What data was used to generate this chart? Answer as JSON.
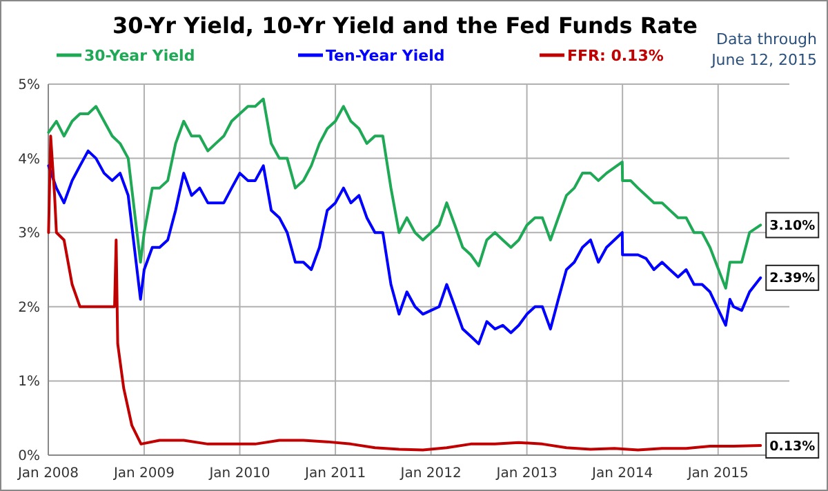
{
  "chart_data": {
    "type": "line",
    "title": "30-Yr Yield, 10-Yr Yield and the Fed Funds Rate",
    "annotations": [
      "Data through\nJune 12, 2015",
      {
        "text": "3.10%",
        "x": "2015-06-12",
        "y": 3.1
      },
      {
        "text": "2.39%",
        "x": "2015-06-12",
        "y": 2.39
      },
      {
        "text": "0.13%",
        "x": "2015-06-12",
        "y": 0.13
      }
    ],
    "series": [
      {
        "name": "30-Year Yield",
        "color": "#1fa855",
        "x": [
          "2008-01-02",
          "2008-02-01",
          "2008-03-01",
          "2008-04-01",
          "2008-05-01",
          "2008-06-01",
          "2008-07-01",
          "2008-08-01",
          "2008-09-01",
          "2008-10-01",
          "2008-11-01",
          "2008-12-18",
          "2009-01-01",
          "2009-02-01",
          "2009-03-01",
          "2009-04-01",
          "2009-05-01",
          "2009-06-01",
          "2009-07-01",
          "2009-08-01",
          "2009-09-01",
          "2009-10-01",
          "2009-11-01",
          "2009-12-01",
          "2010-01-01",
          "2010-02-01",
          "2010-03-01",
          "2010-04-01",
          "2010-05-01",
          "2010-06-01",
          "2010-07-01",
          "2010-08-01",
          "2010-09-01",
          "2010-10-01",
          "2010-11-01",
          "2010-12-01",
          "2011-01-01",
          "2011-02-01",
          "2011-03-01",
          "2011-04-01",
          "2011-05-01",
          "2011-06-01",
          "2011-07-01",
          "2011-08-01",
          "2011-09-01",
          "2011-10-01",
          "2011-11-01",
          "2011-12-01",
          "2012-01-01",
          "2012-02-01",
          "2012-03-01",
          "2012-04-01",
          "2012-05-01",
          "2012-06-01",
          "2012-07-01",
          "2012-08-01",
          "2012-09-01",
          "2012-10-01",
          "2012-11-01",
          "2012-12-01",
          "2013-01-01",
          "2013-02-01",
          "2013-03-01",
          "2013-04-01",
          "2013-05-01",
          "2013-06-01",
          "2013-07-01",
          "2013-08-01",
          "2013-09-01",
          "2013-10-01",
          "2013-11-01",
          "2013-12-31",
          "2014-01-01",
          "2014-02-01",
          "2014-03-01",
          "2014-04-01",
          "2014-05-01",
          "2014-06-01",
          "2014-07-01",
          "2014-08-01",
          "2014-09-01",
          "2014-10-01",
          "2014-11-01",
          "2014-12-01",
          "2015-01-30",
          "2015-02-15",
          "2015-03-01",
          "2015-04-01",
          "2015-05-01",
          "2015-06-12"
        ],
        "values": [
          4.35,
          4.5,
          4.3,
          4.5,
          4.6,
          4.6,
          4.7,
          4.5,
          4.3,
          4.2,
          4.0,
          2.6,
          3.0,
          3.6,
          3.6,
          3.7,
          4.2,
          4.5,
          4.3,
          4.3,
          4.1,
          4.2,
          4.3,
          4.5,
          4.6,
          4.7,
          4.7,
          4.8,
          4.2,
          4.0,
          4.0,
          3.6,
          3.7,
          3.9,
          4.2,
          4.4,
          4.5,
          4.7,
          4.5,
          4.4,
          4.2,
          4.3,
          4.3,
          3.6,
          3.0,
          3.2,
          3.0,
          2.9,
          3.0,
          3.1,
          3.4,
          3.1,
          2.8,
          2.7,
          2.55,
          2.9,
          3.0,
          2.9,
          2.8,
          2.9,
          3.1,
          3.2,
          3.2,
          2.9,
          3.2,
          3.5,
          3.6,
          3.8,
          3.8,
          3.7,
          3.8,
          3.95,
          3.7,
          3.7,
          3.6,
          3.5,
          3.4,
          3.4,
          3.3,
          3.2,
          3.2,
          3.0,
          3.0,
          2.8,
          2.25,
          2.6,
          2.6,
          2.6,
          3.0,
          3.1
        ]
      },
      {
        "name": "Ten-Year Yield",
        "color": "#0000ff",
        "x": [
          "2008-01-02",
          "2008-02-01",
          "2008-03-01",
          "2008-04-01",
          "2008-05-01",
          "2008-06-01",
          "2008-07-01",
          "2008-08-01",
          "2008-09-01",
          "2008-10-01",
          "2008-11-01",
          "2008-12-18",
          "2009-01-01",
          "2009-02-01",
          "2009-03-01",
          "2009-04-01",
          "2009-05-01",
          "2009-06-01",
          "2009-07-01",
          "2009-08-01",
          "2009-09-01",
          "2009-10-01",
          "2009-11-01",
          "2009-12-01",
          "2010-01-01",
          "2010-02-01",
          "2010-03-01",
          "2010-04-01",
          "2010-05-01",
          "2010-06-01",
          "2010-07-01",
          "2010-08-01",
          "2010-09-01",
          "2010-10-01",
          "2010-11-01",
          "2010-12-01",
          "2011-01-01",
          "2011-02-01",
          "2011-03-01",
          "2011-04-01",
          "2011-05-01",
          "2011-06-01",
          "2011-07-01",
          "2011-08-01",
          "2011-09-01",
          "2011-10-01",
          "2011-11-01",
          "2011-12-01",
          "2012-01-01",
          "2012-02-01",
          "2012-03-01",
          "2012-04-01",
          "2012-05-01",
          "2012-06-01",
          "2012-07-01",
          "2012-08-01",
          "2012-09-01",
          "2012-10-01",
          "2012-11-01",
          "2012-12-01",
          "2013-01-01",
          "2013-02-01",
          "2013-03-01",
          "2013-04-01",
          "2013-05-01",
          "2013-06-01",
          "2013-07-01",
          "2013-08-01",
          "2013-09-01",
          "2013-10-01",
          "2013-11-01",
          "2013-12-31",
          "2014-01-01",
          "2014-02-01",
          "2014-03-01",
          "2014-04-01",
          "2014-05-01",
          "2014-06-01",
          "2014-07-01",
          "2014-08-01",
          "2014-09-01",
          "2014-10-01",
          "2014-11-01",
          "2014-12-01",
          "2015-01-30",
          "2015-02-15",
          "2015-03-01",
          "2015-04-01",
          "2015-05-01",
          "2015-06-12"
        ],
        "values": [
          3.9,
          3.6,
          3.4,
          3.7,
          3.9,
          4.1,
          4.0,
          3.8,
          3.7,
          3.8,
          3.5,
          2.1,
          2.5,
          2.8,
          2.8,
          2.9,
          3.3,
          3.8,
          3.5,
          3.6,
          3.4,
          3.4,
          3.4,
          3.6,
          3.8,
          3.7,
          3.7,
          3.9,
          3.3,
          3.2,
          3.0,
          2.6,
          2.6,
          2.5,
          2.8,
          3.3,
          3.4,
          3.6,
          3.4,
          3.5,
          3.2,
          3.0,
          3.0,
          2.3,
          1.9,
          2.2,
          2.0,
          1.9,
          1.95,
          2.0,
          2.3,
          2.0,
          1.7,
          1.6,
          1.5,
          1.8,
          1.7,
          1.75,
          1.65,
          1.75,
          1.9,
          2.0,
          2.0,
          1.7,
          2.1,
          2.5,
          2.6,
          2.8,
          2.9,
          2.6,
          2.8,
          3.0,
          2.7,
          2.7,
          2.7,
          2.65,
          2.5,
          2.6,
          2.5,
          2.4,
          2.5,
          2.3,
          2.3,
          2.2,
          1.75,
          2.1,
          2.0,
          1.95,
          2.2,
          2.39
        ]
      },
      {
        "name": "FFR: 0.13%",
        "color": "#c00000",
        "x": [
          "2008-01-02",
          "2008-01-10",
          "2008-01-25",
          "2008-02-01",
          "2008-03-01",
          "2008-04-01",
          "2008-05-01",
          "2008-06-01",
          "2008-07-01",
          "2008-08-01",
          "2008-09-10",
          "2008-09-16",
          "2008-09-22",
          "2008-10-15",
          "2008-11-15",
          "2008-12-20",
          "2009-03-01",
          "2009-06-01",
          "2009-09-01",
          "2009-12-01",
          "2010-03-01",
          "2010-06-01",
          "2010-09-01",
          "2010-12-01",
          "2011-03-01",
          "2011-06-01",
          "2011-09-01",
          "2011-12-01",
          "2012-03-01",
          "2012-06-01",
          "2012-09-01",
          "2012-12-01",
          "2013-03-01",
          "2013-06-01",
          "2013-09-01",
          "2013-12-01",
          "2014-03-01",
          "2014-06-01",
          "2014-09-01",
          "2014-12-01",
          "2015-03-01",
          "2015-06-12"
        ],
        "values": [
          3.0,
          4.3,
          3.5,
          3.0,
          2.9,
          2.3,
          2.0,
          2.0,
          2.0,
          2.0,
          2.0,
          2.9,
          1.5,
          0.9,
          0.4,
          0.15,
          0.2,
          0.2,
          0.15,
          0.15,
          0.15,
          0.2,
          0.2,
          0.18,
          0.15,
          0.1,
          0.08,
          0.07,
          0.1,
          0.15,
          0.15,
          0.17,
          0.15,
          0.1,
          0.08,
          0.09,
          0.07,
          0.09,
          0.09,
          0.12,
          0.12,
          0.13
        ]
      }
    ],
    "xlim": [
      "2008-01-01",
      "2015-09-30"
    ],
    "xticks": [
      {
        "value": "2008-01-01",
        "label": "Jan 2008"
      },
      {
        "value": "2009-01-01",
        "label": "Jan 2009"
      },
      {
        "value": "2010-01-01",
        "label": "Jan 2010"
      },
      {
        "value": "2011-01-01",
        "label": "Jan 2011"
      },
      {
        "value": "2012-01-01",
        "label": "Jan 2012"
      },
      {
        "value": "2013-01-01",
        "label": "Jan 2013"
      },
      {
        "value": "2014-01-01",
        "label": "Jan 2014"
      },
      {
        "value": "2015-01-01",
        "label": "Jan 2015"
      }
    ],
    "ylim": [
      0,
      5
    ],
    "yticks": [
      {
        "value": 0,
        "label": "0%"
      },
      {
        "value": 1,
        "label": "1%"
      },
      {
        "value": 2,
        "label": "2%"
      },
      {
        "value": 3,
        "label": "3%"
      },
      {
        "value": 4,
        "label": "4%"
      },
      {
        "value": 5,
        "label": "5%"
      }
    ],
    "grid": true,
    "legend": "top",
    "line_style": "solid"
  }
}
